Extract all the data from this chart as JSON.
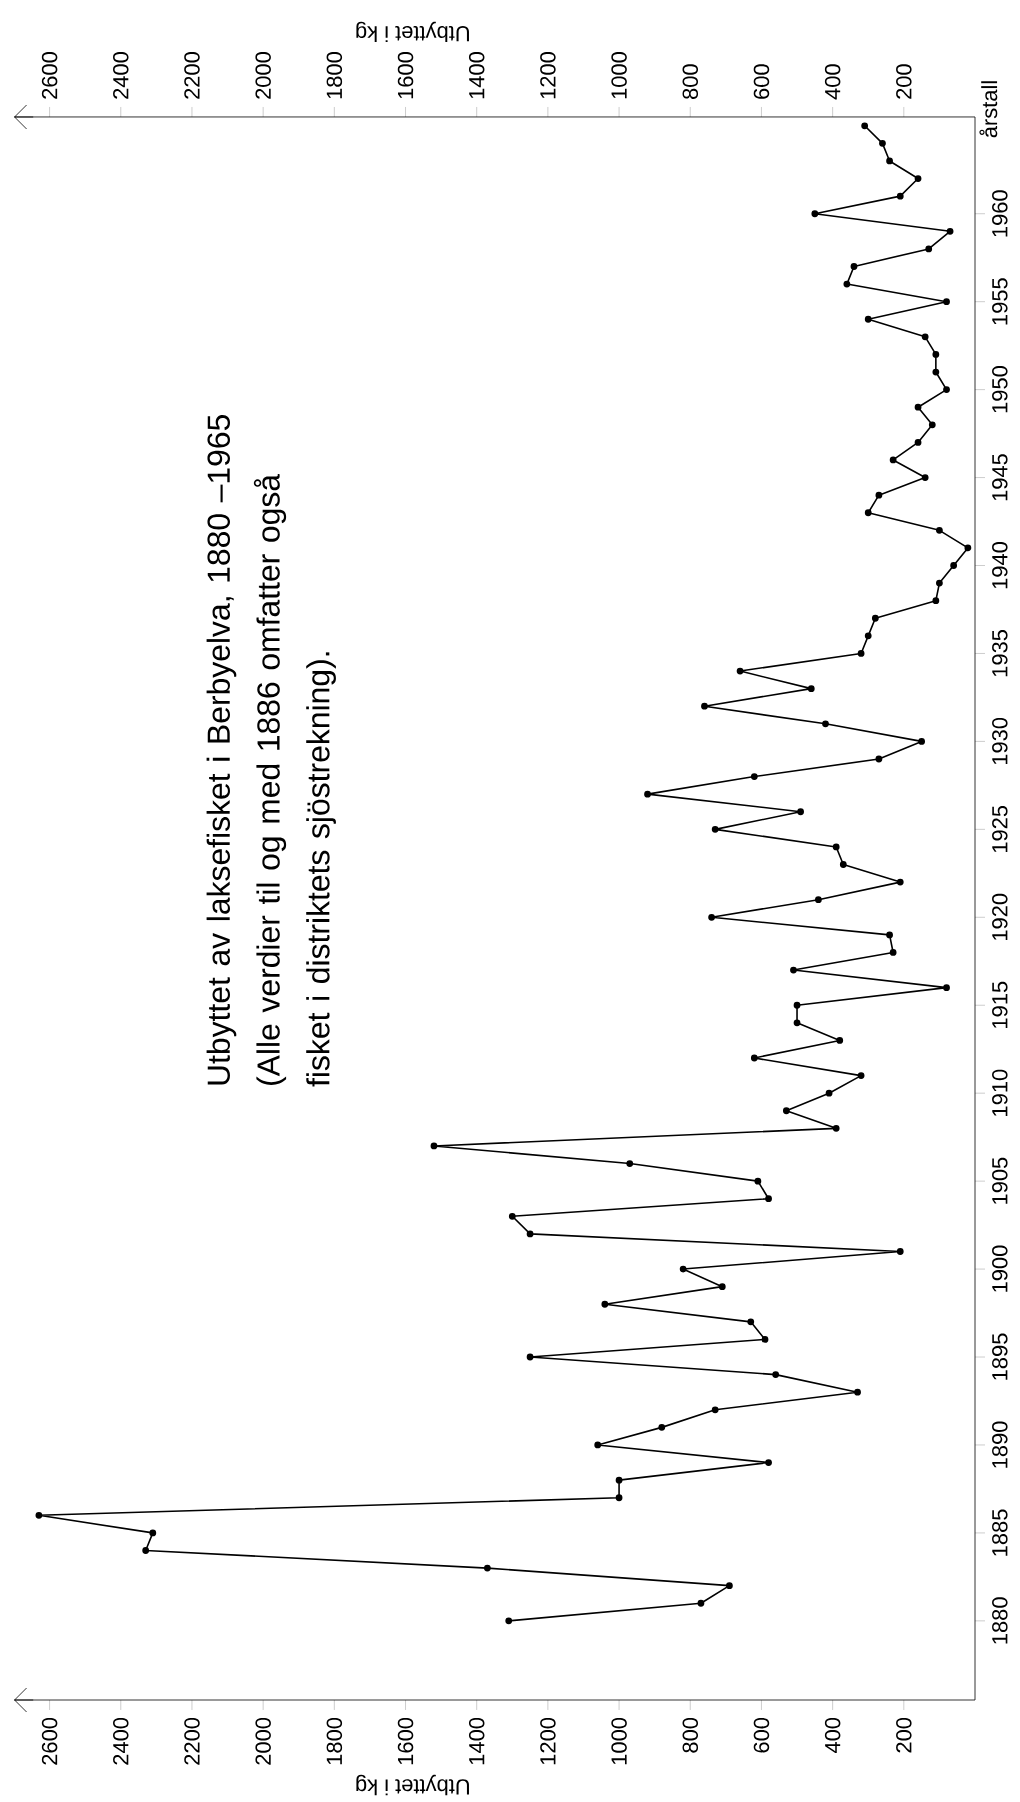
{
  "chart_data": {
    "type": "line",
    "orientation": "horizontal",
    "title": "Utbyttet av laksefisket i Berbyelva, 1880 –1965",
    "subtitle": "(Alle verdier til og med 1886 omfatter også fisket i distriktets sjöstrekning).",
    "xlabel": "Utbyttet i kg",
    "x2label": "Utbyttet i kg",
    "ylabel": "årstall",
    "x": [
      1880,
      1881,
      1882,
      1883,
      1884,
      1885,
      1886,
      1887,
      1888,
      1889,
      1890,
      1891,
      1892,
      1893,
      1894,
      1895,
      1896,
      1897,
      1898,
      1899,
      1900,
      1901,
      1902,
      1903,
      1904,
      1905,
      1906,
      1907,
      1908,
      1909,
      1910,
      1911,
      1912,
      1913,
      1914,
      1915,
      1916,
      1917,
      1918,
      1919,
      1920,
      1921,
      1922,
      1923,
      1924,
      1925,
      1926,
      1927,
      1928,
      1929,
      1930,
      1931,
      1932,
      1933,
      1934,
      1935,
      1936,
      1937,
      1938,
      1939,
      1940,
      1941,
      1942,
      1943,
      1944,
      1945,
      1946,
      1947,
      1948,
      1949,
      1950,
      1951,
      1952,
      1953,
      1954,
      1955,
      1956,
      1957,
      1958,
      1959,
      1960,
      1961,
      1962,
      1963,
      1964,
      1965
    ],
    "series": [
      {
        "color": "#000000",
        "values": [
          1310,
          770,
          690,
          1370,
          2330,
          2310,
          2630,
          1000,
          1000,
          580,
          1060,
          880,
          730,
          330,
          560,
          1250,
          590,
          630,
          1040,
          710,
          820,
          210,
          1250,
          1300,
          580,
          610,
          970,
          1520,
          390,
          530,
          410,
          320,
          620,
          380,
          500,
          500,
          80,
          510,
          230,
          240,
          740,
          440,
          210,
          370,
          390,
          730,
          490,
          920,
          620,
          270,
          150,
          420,
          760,
          460,
          660,
          320,
          300,
          280,
          110,
          100,
          60,
          20,
          100,
          300,
          270,
          140,
          230,
          160,
          120,
          160,
          80,
          110,
          110,
          140,
          300,
          80,
          360,
          340,
          130,
          70,
          450,
          210,
          160,
          240,
          260,
          310
        ]
      }
    ],
    "ylim": [
      1875.5,
      1965.5
    ],
    "yticks": [
      1880,
      1885,
      1890,
      1895,
      1900,
      1905,
      1910,
      1915,
      1920,
      1925,
      1930,
      1935,
      1940,
      1945,
      1950,
      1955,
      1960
    ],
    "xlim": [
      2700,
      0
    ],
    "xticks": [
      2600,
      2400,
      2200,
      2000,
      1800,
      1600,
      1400,
      1200,
      1000,
      800,
      600,
      400,
      200
    ],
    "x2lim": [
      2700,
      0
    ],
    "x2ticks": [
      2600,
      2400,
      2200,
      2000,
      1800,
      1600,
      1400,
      1200,
      1000,
      800,
      600,
      400,
      200
    ],
    "marker": "circle",
    "line_style": "solid"
  }
}
